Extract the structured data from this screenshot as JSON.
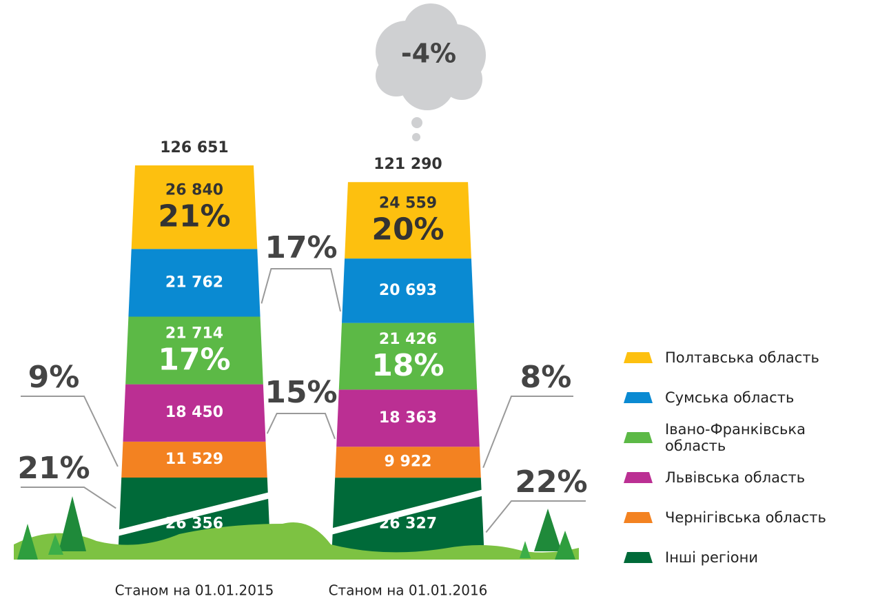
{
  "chart_data": {
    "type": "bar",
    "stacked": true,
    "categories": [
      "Станом на 01.01.2015",
      "Станом на 01.01.2016"
    ],
    "totals": [
      126651,
      121290
    ],
    "total_labels": [
      "126 651",
      "121 290"
    ],
    "change_label": "-4%",
    "series": [
      {
        "name": "Полтавська область",
        "color": "#fdc00f",
        "values": [
          26840,
          24559
        ],
        "value_labels": [
          "26 840",
          "24 559"
        ],
        "share_labels": [
          "21%",
          "20%"
        ]
      },
      {
        "name": "Сумська область",
        "color": "#0a8ad2",
        "values": [
          21762,
          20693
        ],
        "value_labels": [
          "21 762",
          "20 693"
        ],
        "share_labels": [
          "17%"
        ]
      },
      {
        "name": "Івано-Франківська область",
        "color": "#5cb946",
        "values": [
          21714,
          21426
        ],
        "value_labels": [
          "21 714",
          "21 426"
        ],
        "share_labels": [
          "17%",
          "18%"
        ]
      },
      {
        "name": "Львівська область",
        "color": "#bb2f93",
        "values": [
          18450,
          18363
        ],
        "value_labels": [
          "18 450",
          "18 363"
        ],
        "share_labels": [
          "15%"
        ]
      },
      {
        "name": "Чернігівська область",
        "color": "#f38221",
        "values": [
          11529,
          9922
        ],
        "value_labels": [
          "11 529",
          "9 922"
        ],
        "share_labels": [
          "9%",
          "8%"
        ]
      },
      {
        "name": "Інші регіони",
        "color": "#006a39",
        "values": [
          26356,
          26327
        ],
        "value_labels": [
          "26 356",
          "26 327"
        ],
        "share_labels": [
          "21%",
          "22%"
        ]
      }
    ]
  }
}
